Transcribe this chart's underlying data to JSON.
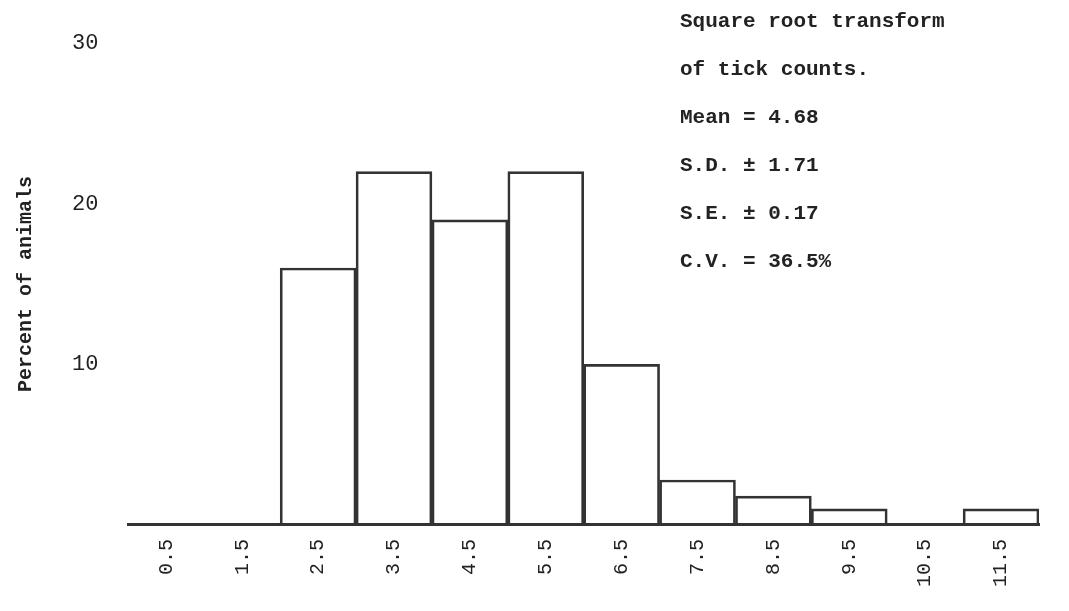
{
  "chart_data": {
    "type": "bar",
    "ylabel": "Percent of animals",
    "categories": [
      "0.5",
      "1.5",
      "2.5",
      "3.5",
      "4.5",
      "5.5",
      "6.5",
      "7.5",
      "8.5",
      "9.5",
      "10.5",
      "11.5"
    ],
    "values": [
      0,
      0,
      16,
      22,
      19,
      22,
      10,
      2.8,
      1.8,
      1,
      0,
      1
    ],
    "color": "#333333",
    "ylim": [
      0,
      30
    ],
    "yticks": [
      10,
      20,
      30
    ],
    "grid": false,
    "annotations": [
      "Square root transform",
      "of tick counts.",
      "Mean = 4.68",
      "S.D. ± 1.71",
      "S.E. ± 0.17",
      "C.V. = 36.5%"
    ]
  }
}
